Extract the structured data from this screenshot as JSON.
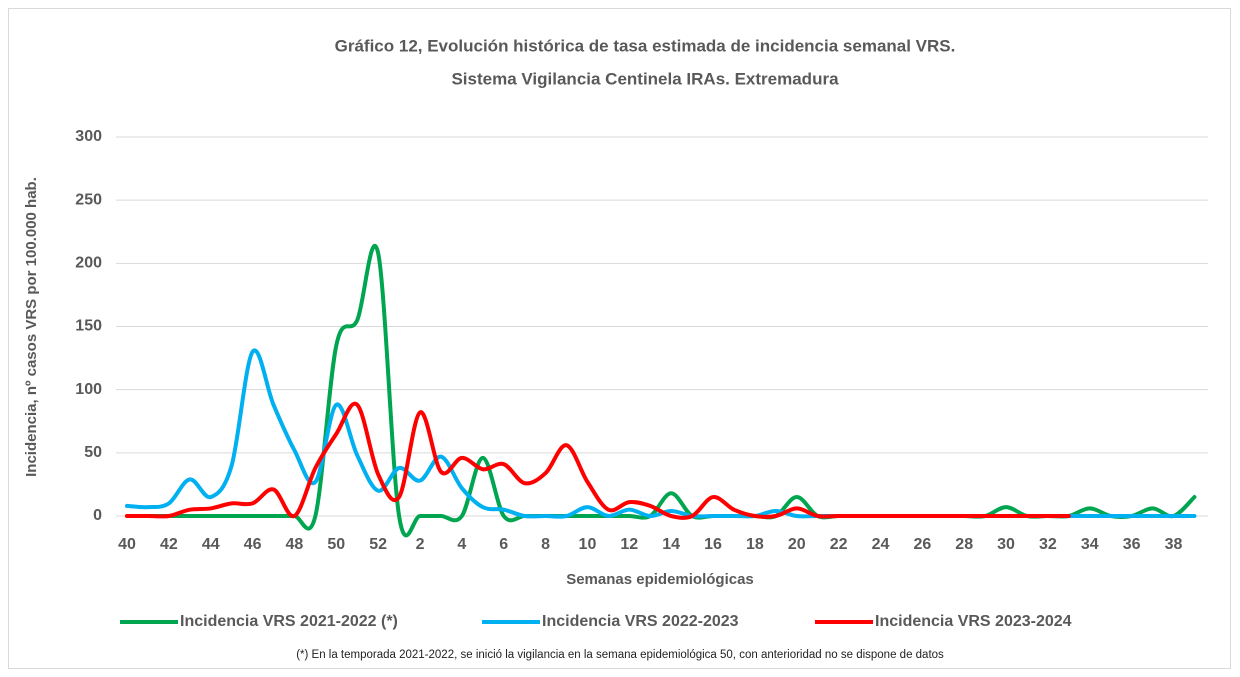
{
  "chart_data": {
    "type": "line",
    "title": [
      "Gráfico 12, Evolución histórica de tasa estimada de  incidencia semanal VRS.",
      "Sistema Vigilancia Centinela IRAs. Extremadura"
    ],
    "x_label": "Semanas epidemiológicas",
    "y_label": "Incidencia, nº casos VRS  por 100.000 hab.",
    "footnote": "(*) En la temporada 2021-2022, se inició la vigilancia en la semana epidemiológica 50, con anterioridad no se dispone de datos",
    "categories": [
      40,
      null,
      42,
      null,
      44,
      null,
      46,
      null,
      48,
      null,
      50,
      null,
      52,
      null,
      2,
      null,
      4,
      null,
      6,
      null,
      8,
      null,
      10,
      null,
      12,
      null,
      14,
      null,
      16,
      null,
      18,
      null,
      20,
      null,
      22,
      null,
      24,
      null,
      26,
      null,
      28,
      null,
      30,
      null,
      32,
      null,
      34,
      null,
      36,
      null,
      38,
      null
    ],
    "ylim": [
      0,
      300
    ],
    "yticks": [
      0,
      50,
      100,
      150,
      200,
      250,
      300
    ],
    "grid": true,
    "series": [
      {
        "name": "Incidencia VRS 2021-2022 (*)",
        "color": "#00a550",
        "values": [
          0,
          0,
          0,
          0,
          0,
          0,
          0,
          0,
          0,
          0,
          135,
          155,
          208,
          0,
          0,
          0,
          0,
          46,
          0,
          0,
          0,
          0,
          0,
          0,
          0,
          0,
          18,
          0,
          0,
          0,
          0,
          0,
          15,
          0,
          0,
          0,
          0,
          0,
          0,
          0,
          0,
          0,
          7,
          0,
          0,
          0,
          6,
          0,
          0,
          6,
          0,
          15
        ]
      },
      {
        "name": "Incidencia VRS 2022-2023",
        "color": "#00b0f0",
        "values": [
          8,
          7,
          10,
          29,
          15,
          40,
          130,
          88,
          52,
          27,
          88,
          48,
          20,
          38,
          28,
          47,
          22,
          7,
          5,
          0,
          0,
          0,
          7,
          0,
          5,
          0,
          4,
          0,
          0,
          0,
          0,
          4,
          0,
          0,
          0,
          0,
          0,
          0,
          0,
          0,
          0,
          0,
          0,
          0,
          0,
          0,
          0,
          0,
          0,
          0,
          0,
          0
        ]
      },
      {
        "name": "Incidencia VRS 2023-2024",
        "color": "#ff0000",
        "values": [
          0,
          0,
          0,
          5,
          6,
          10,
          10,
          21,
          0,
          38,
          65,
          88,
          33,
          15,
          82,
          35,
          46,
          37,
          41,
          26,
          34,
          56,
          27,
          5,
          11,
          8,
          0,
          0,
          15,
          5,
          0,
          0,
          6,
          0,
          0,
          0,
          0,
          0,
          0,
          0,
          0,
          0,
          0,
          0,
          0,
          0,
          null,
          null,
          null,
          null,
          null,
          null
        ]
      }
    ]
  }
}
